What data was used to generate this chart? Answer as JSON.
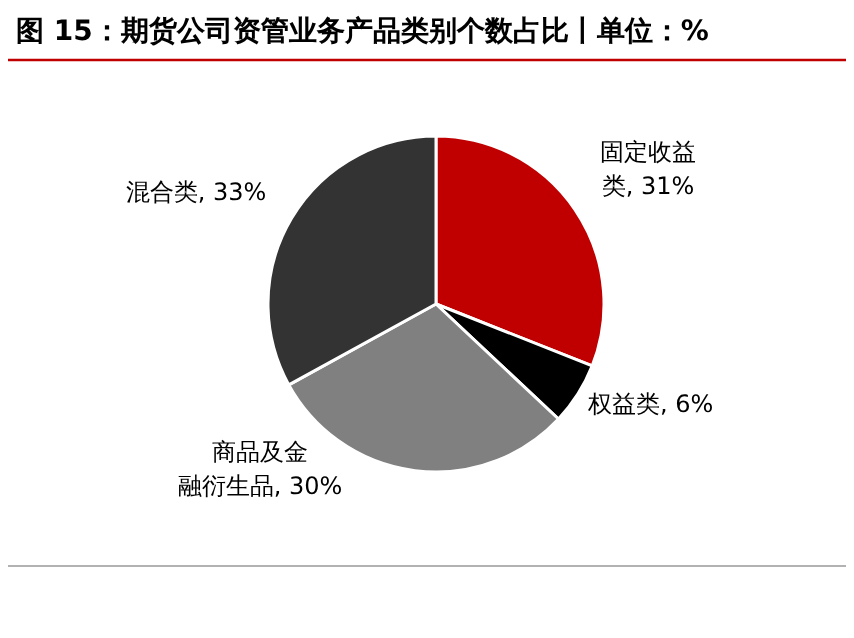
{
  "chart_data": {
    "type": "pie",
    "title": "图 15：期货公司资管业务产品类别个数占比丨单位：%",
    "categories": [
      "固定收益类",
      "权益类",
      "商品及金融衍生品",
      "混合类"
    ],
    "values": [
      31,
      6,
      30,
      33
    ],
    "value_labels": [
      ", 31%",
      ", 6%",
      ", 30%",
      ", 33%"
    ],
    "colors": [
      "#c00000",
      "#000000",
      "#808080",
      "#333333"
    ]
  }
}
